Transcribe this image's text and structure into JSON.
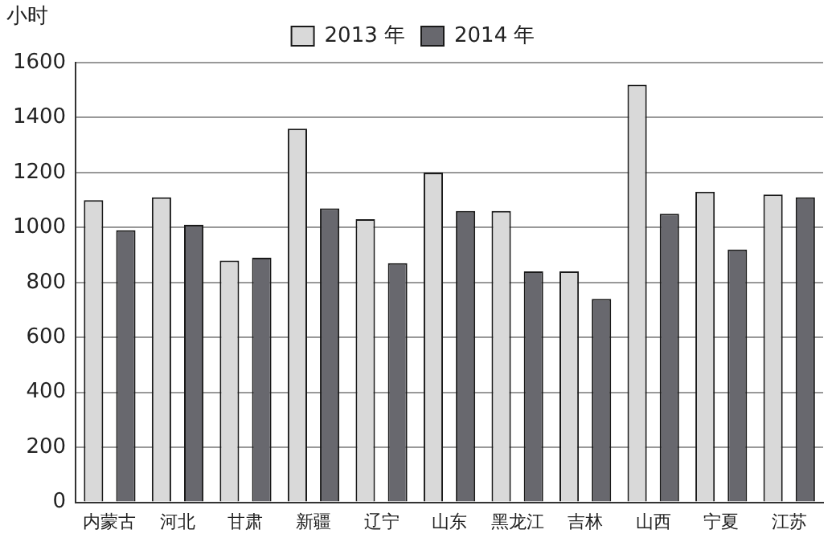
{
  "chart_data": {
    "type": "bar",
    "ylabel": "小时",
    "categories": [
      "内蒙古",
      "河北",
      "甘肃",
      "新疆",
      "辽宁",
      "山东",
      "黑龙江",
      "吉林",
      "山西",
      "宁夏",
      "江苏"
    ],
    "series": [
      {
        "name": "2013 年",
        "color": "#d9d9d9",
        "values": [
          1100,
          1110,
          880,
          1360,
          1030,
          1200,
          1060,
          840,
          1520,
          1130,
          1120
        ]
      },
      {
        "name": "2014 年",
        "color": "#68686e",
        "values": [
          990,
          1010,
          890,
          1070,
          870,
          1060,
          840,
          740,
          1050,
          920,
          1110
        ]
      }
    ],
    "ylim": [
      0,
      1600
    ],
    "yticks": [
      0,
      200,
      400,
      600,
      800,
      1000,
      1200,
      1400,
      1600
    ],
    "grid": "y",
    "legend": "top"
  }
}
